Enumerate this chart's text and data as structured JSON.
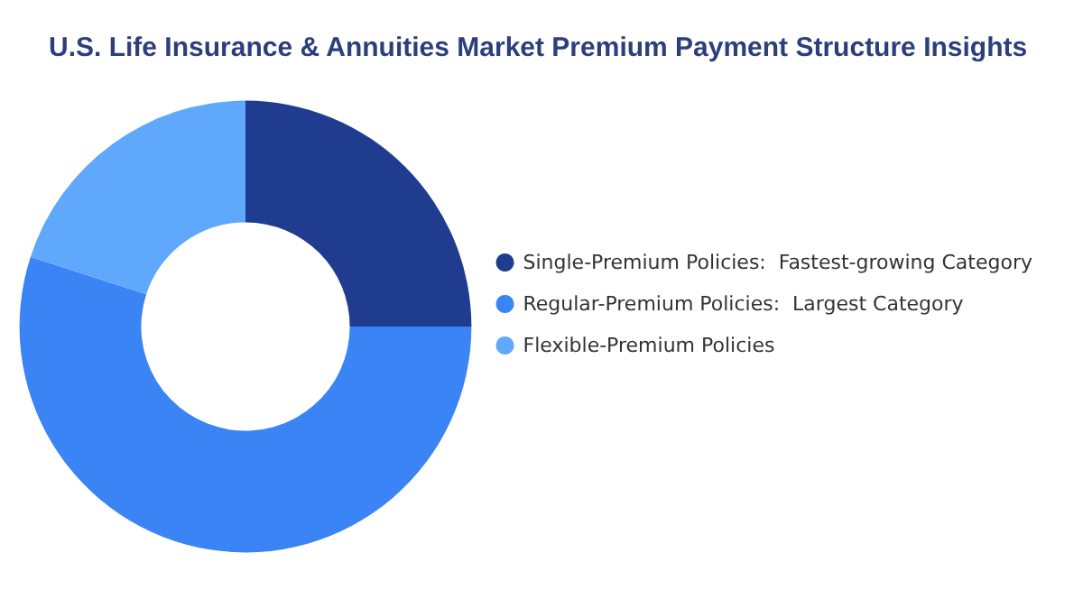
{
  "chart_data": {
    "type": "donut",
    "title": "U.S. Life Insurance & Annuities Market Premium Payment Structure Insights",
    "categories": [
      "Single-Premium Policies:  Fastest-growing Category",
      "Regular-Premium Policies:  Largest Category",
      "Flexible-Premium Policies"
    ],
    "values": [
      25,
      55,
      20
    ],
    "colors": [
      "#1f3c8f",
      "#3b84f6",
      "#60a8fb"
    ],
    "legend": "right"
  }
}
